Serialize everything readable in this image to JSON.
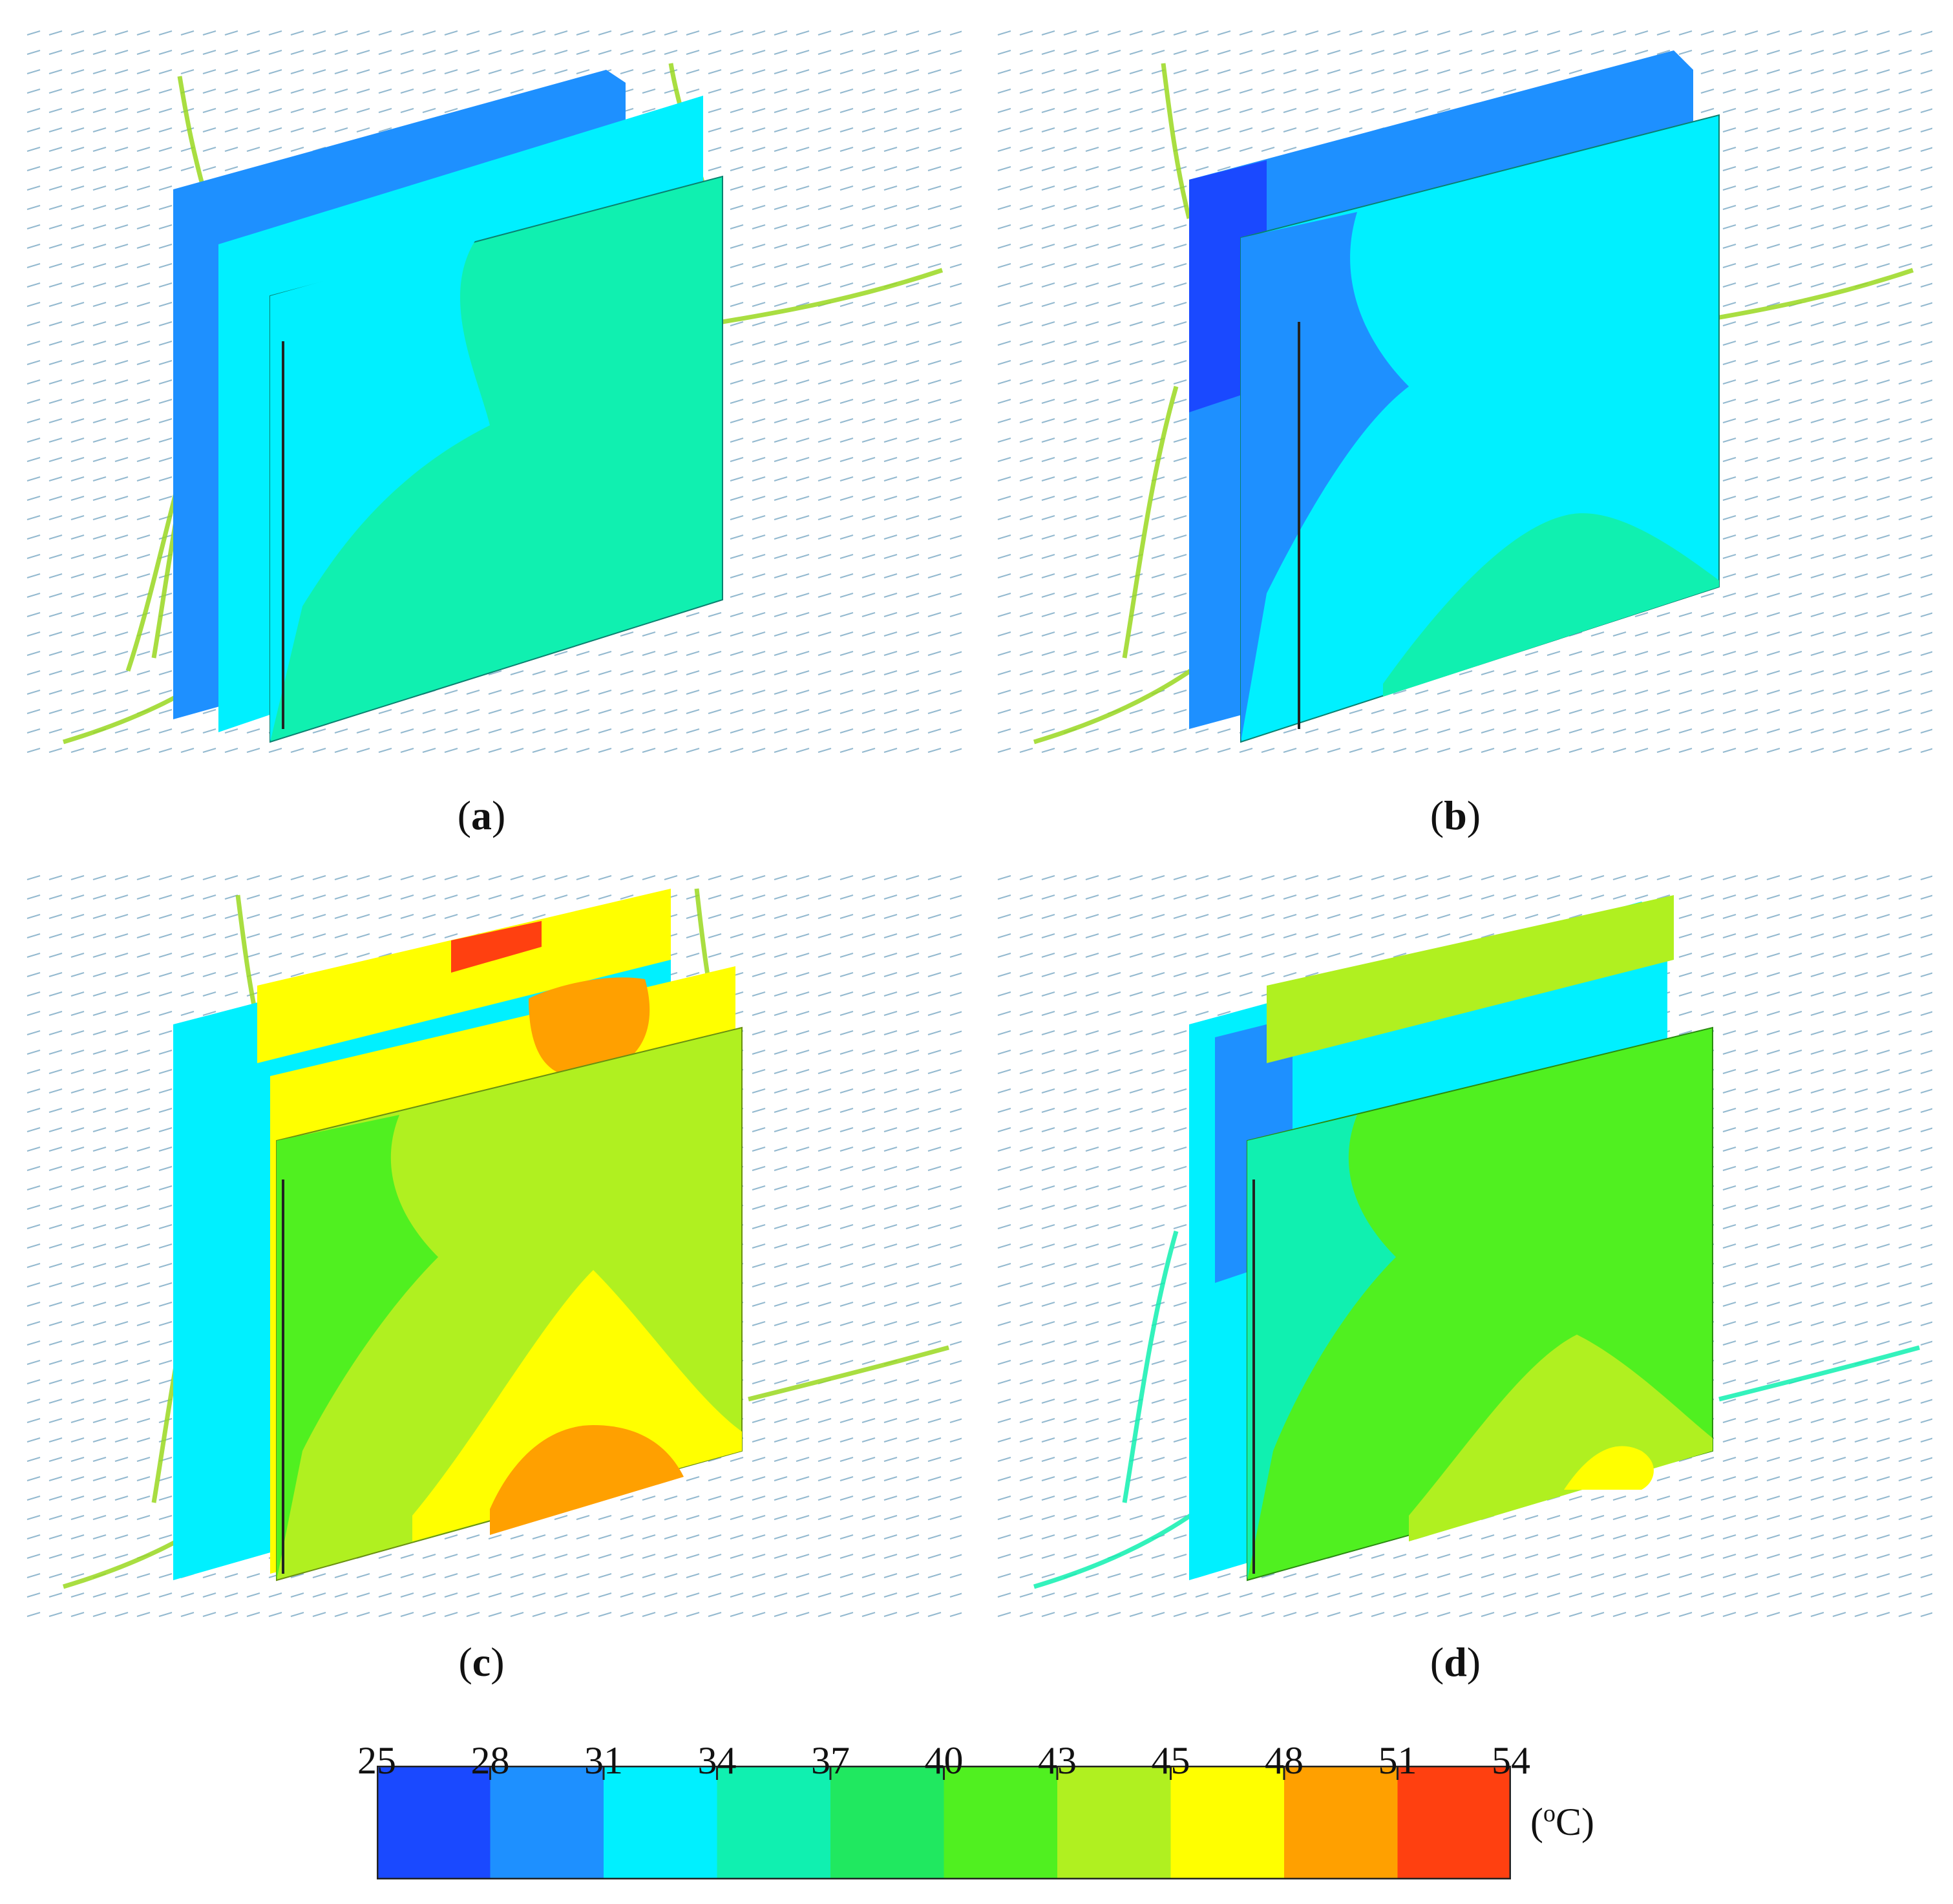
{
  "panels": [
    {
      "id": "a",
      "label": "a"
    },
    {
      "id": "b",
      "label": "b"
    },
    {
      "id": "c",
      "label": "c"
    },
    {
      "id": "d",
      "label": "d"
    }
  ],
  "legend": {
    "ticks": [
      "25",
      "28",
      "31",
      "34",
      "37",
      "40",
      "43",
      "45",
      "48",
      "51",
      "54"
    ],
    "colors": [
      "#1a49ff",
      "#1e90ff",
      "#00f0ff",
      "#10f0b0",
      "#20e860",
      "#50f020",
      "#b0f020",
      "#ffff00",
      "#ffa000",
      "#ff4010"
    ],
    "unit_prefix": "(",
    "unit_sup": "o",
    "unit_suffix": "C)"
  }
}
